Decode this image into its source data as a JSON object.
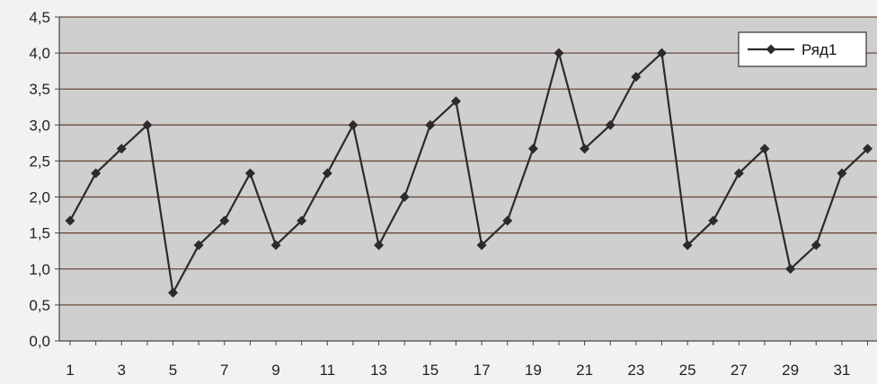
{
  "chart_data": {
    "type": "line",
    "title": "",
    "xlabel": "",
    "ylabel": "",
    "ylim": [
      0,
      4.5
    ],
    "y_ticks": [
      "0,0",
      "0,5",
      "1,0",
      "1,5",
      "2,0",
      "2,5",
      "3,0",
      "3,5",
      "4,0",
      "4,5"
    ],
    "x_tick_labels": [
      "1",
      "3",
      "5",
      "7",
      "9",
      "11",
      "13",
      "15",
      "17",
      "19",
      "21",
      "23",
      "25",
      "27",
      "29",
      "31"
    ],
    "x": [
      1,
      2,
      3,
      4,
      5,
      6,
      7,
      8,
      9,
      10,
      11,
      12,
      13,
      14,
      15,
      16,
      17,
      18,
      19,
      20,
      21,
      22,
      23,
      24,
      25,
      26,
      27,
      28,
      29,
      30,
      31,
      32
    ],
    "series": [
      {
        "name": "Ряд1",
        "values": [
          1.67,
          2.33,
          2.67,
          3.0,
          0.67,
          1.33,
          1.67,
          2.33,
          1.33,
          1.67,
          2.33,
          3.0,
          1.33,
          2.0,
          3.0,
          3.33,
          1.33,
          1.67,
          2.67,
          4.0,
          2.67,
          3.0,
          3.67,
          4.0,
          1.33,
          1.67,
          2.33,
          2.67,
          1.0,
          1.33,
          2.33,
          2.67
        ]
      }
    ],
    "grid": true,
    "legend_position": "top-right",
    "colors": {
      "plot_background": "#cfcfcf",
      "gridline": "#6e4a3c",
      "series_line": "#2b2b2b",
      "page_background": "#f2f2f2"
    }
  }
}
